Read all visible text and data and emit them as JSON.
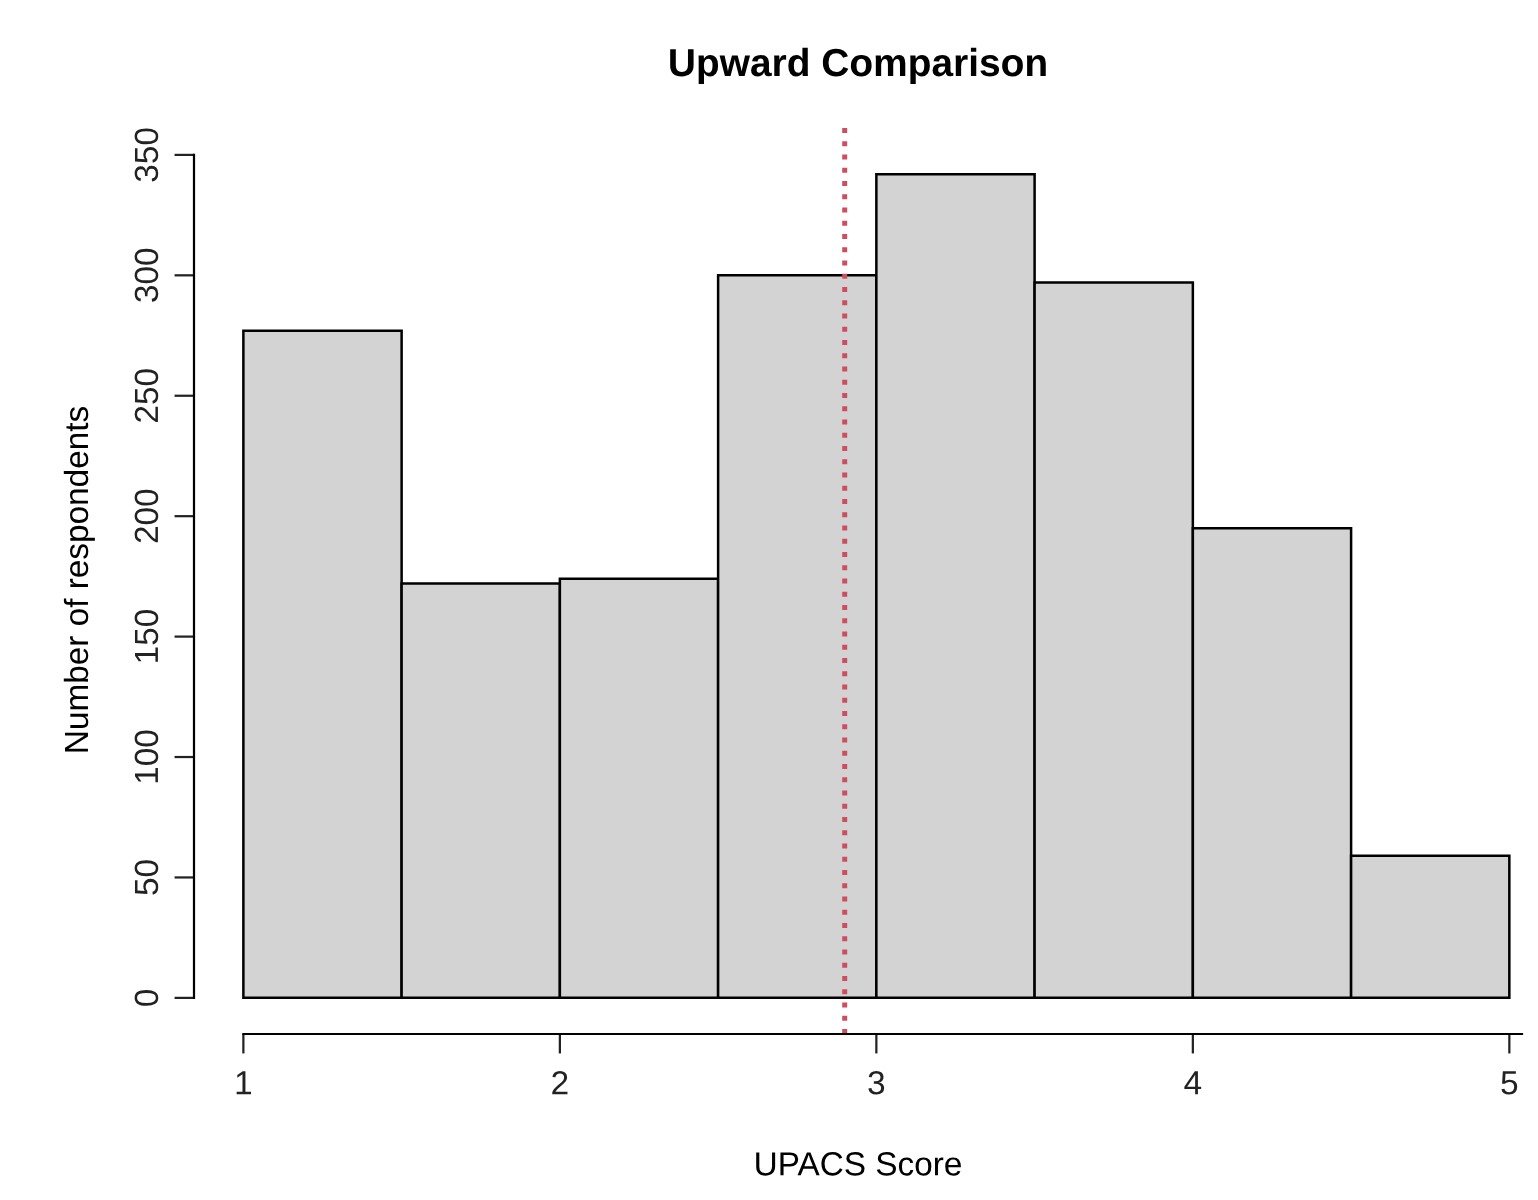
{
  "chart_data": {
    "type": "histogram",
    "title": "Upward Comparison",
    "xlabel": "UPACS Score",
    "ylabel": "Number of respondents",
    "bins": [
      1,
      1.5,
      2,
      2.5,
      3,
      3.5,
      4,
      4.5,
      5
    ],
    "values": [
      277,
      172,
      174,
      300,
      342,
      297,
      195,
      59
    ],
    "color": "#d3d3d3",
    "xlim": [
      0.844,
      5.04
    ],
    "ylim": [
      -15,
      362
    ],
    "xticks": [
      1,
      2,
      3,
      4,
      5
    ],
    "yticks": [
      0,
      50,
      100,
      150,
      200,
      250,
      300,
      350
    ],
    "ref_lines": [
      {
        "axis": "x",
        "value": 2.9,
        "color": "#cd4f5f",
        "line_style": "dotted"
      }
    ],
    "grid": false,
    "legend": false
  }
}
